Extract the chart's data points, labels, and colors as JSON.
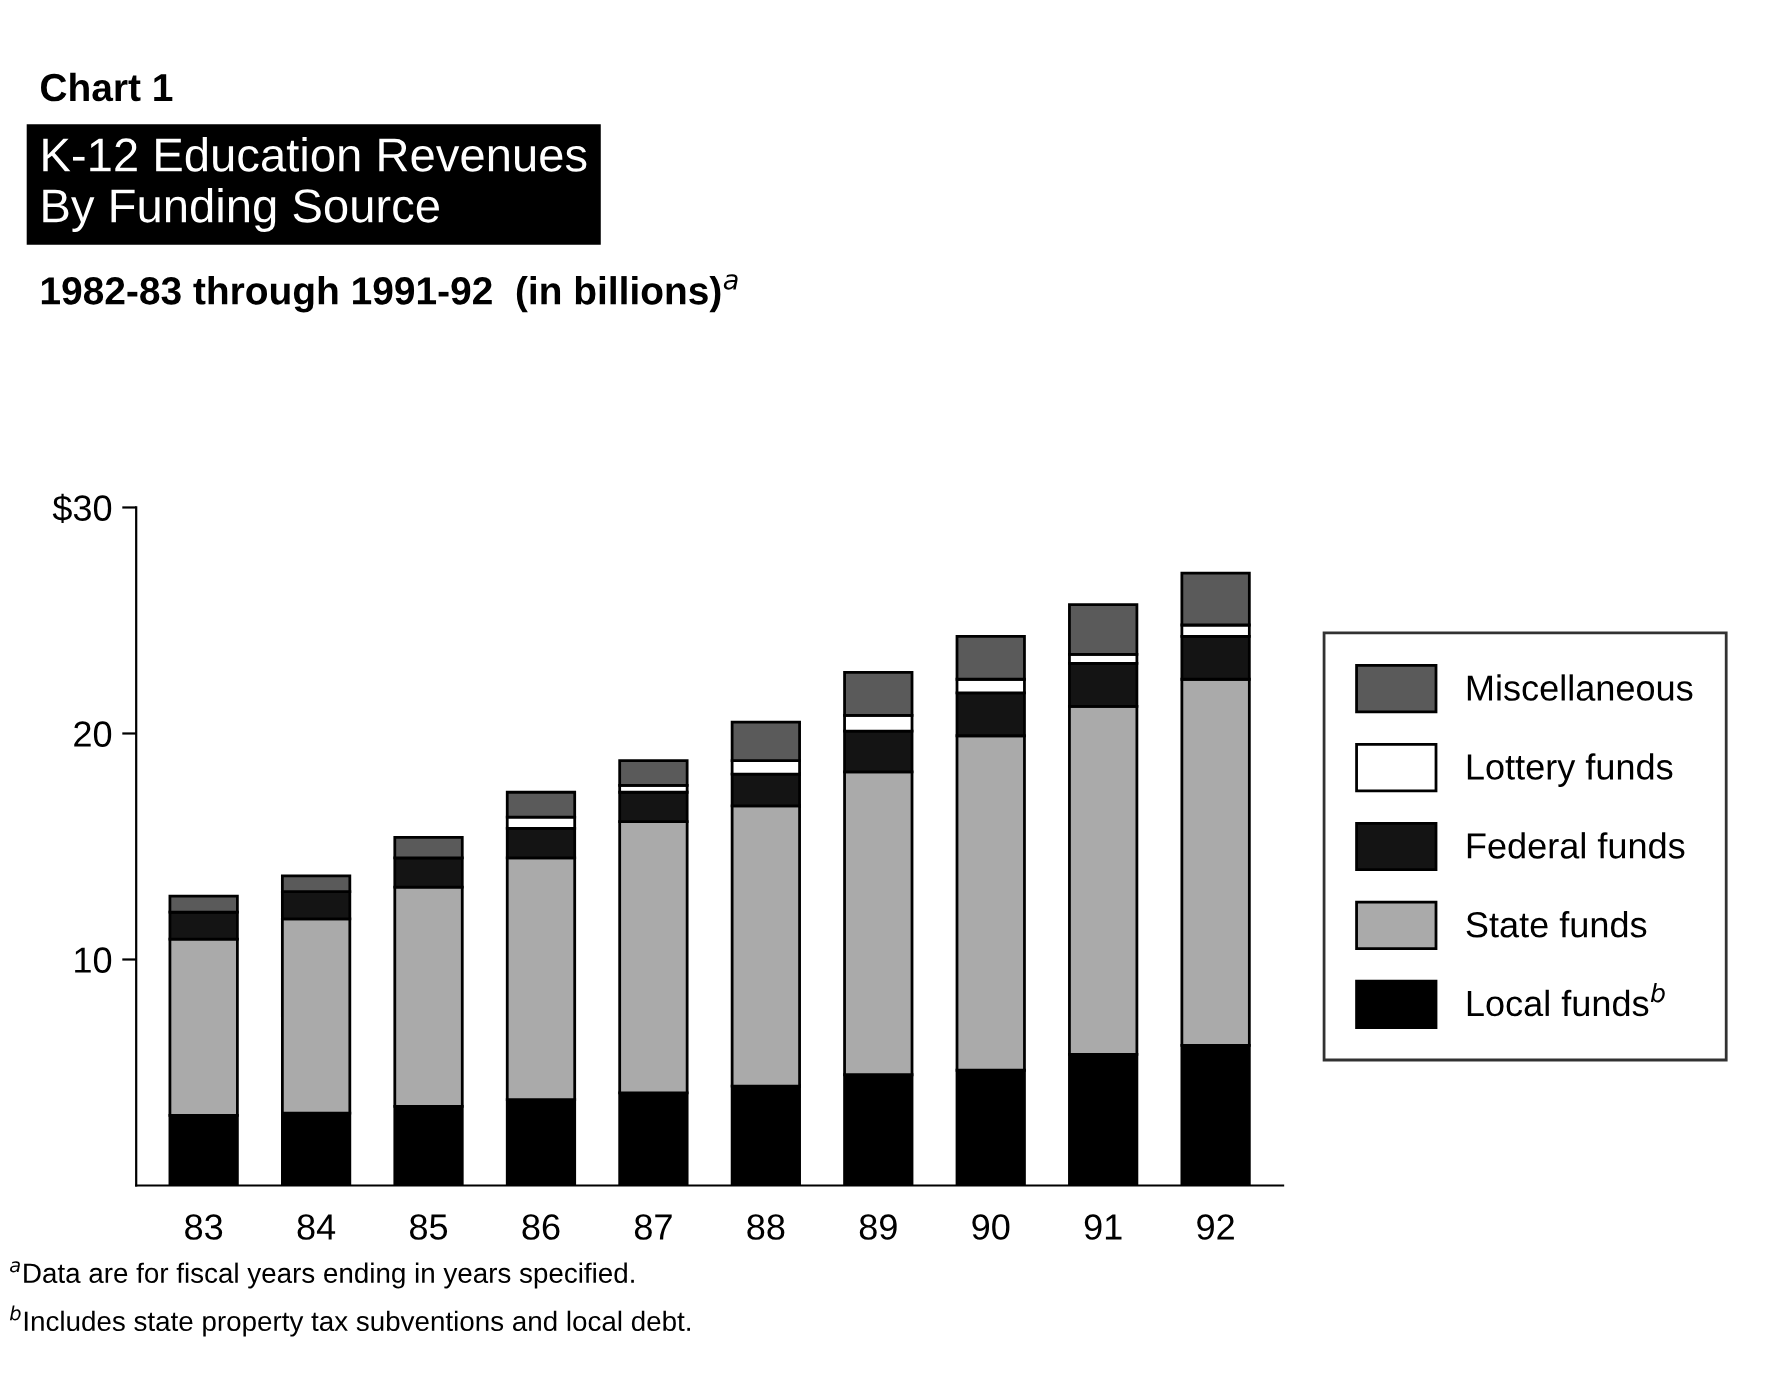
{
  "chart_data": {
    "type": "bar",
    "stacked": true,
    "title": "K-12 Education Revenues\nBy Funding Source",
    "subtitle": "1982-83 through 1991-92  (in billions)$^{a}$",
    "annotations": [
      "Chart 1",
      "$^{a}$Data are for fiscal years ending in years specified.",
      "$^{b}$Includes state property tax subventions and local debt."
    ],
    "categories": [
      "83",
      "84",
      "85",
      "86",
      "87",
      "88",
      "89",
      "90",
      "91",
      "92"
    ],
    "series": [
      {
        "name": "Local funds$^{b}$",
        "color": "#000000",
        "values": [
          3.1,
          3.2,
          3.5,
          3.8,
          4.1,
          4.4,
          4.9,
          5.1,
          5.8,
          6.2
        ]
      },
      {
        "name": "State funds",
        "color": "#aaaaaa",
        "values": [
          7.8,
          8.6,
          9.7,
          10.7,
          12.0,
          12.4,
          13.4,
          14.8,
          15.4,
          16.2
        ]
      },
      {
        "name": "Federal funds",
        "color": "#141414",
        "values": [
          1.2,
          1.2,
          1.3,
          1.3,
          1.3,
          1.4,
          1.8,
          1.9,
          1.9,
          1.9
        ]
      },
      {
        "name": "Lottery funds",
        "color": "#ffffff",
        "values": [
          0,
          0,
          0,
          0.5,
          0.3,
          0.6,
          0.7,
          0.6,
          0.4,
          0.5
        ]
      },
      {
        "name": "Miscellaneous",
        "color": "#5a5a5a",
        "values": [
          0.7,
          0.7,
          0.9,
          1.1,
          1.1,
          1.7,
          1.9,
          1.9,
          2.2,
          2.3
        ]
      }
    ],
    "ylim": [
      0,
      30
    ],
    "yticks": [
      {
        "value": 10,
        "label": "10"
      },
      {
        "value": 20,
        "label": "20"
      },
      {
        "value": 30,
        "label": "$30"
      }
    ],
    "grid": false,
    "legend": "right"
  }
}
